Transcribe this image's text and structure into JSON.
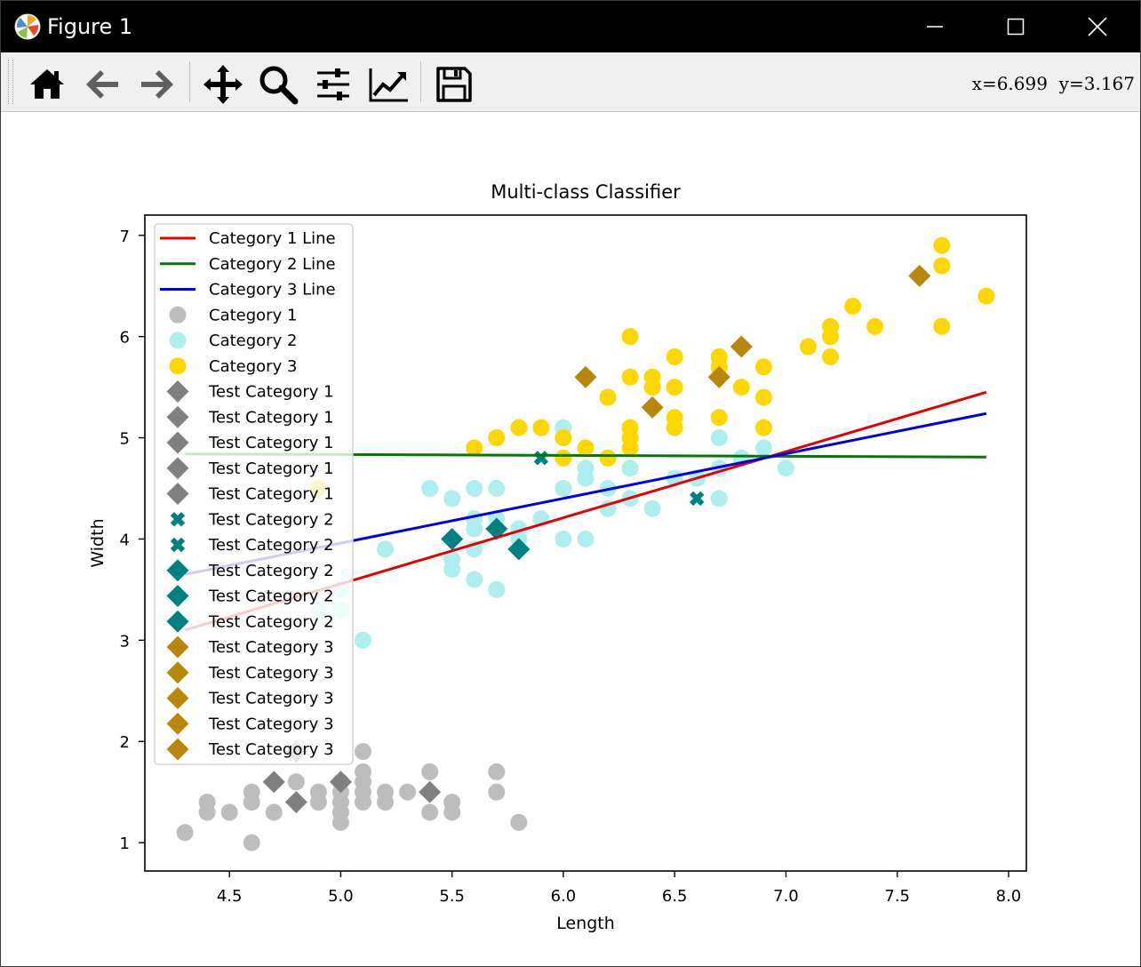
{
  "window": {
    "title": "Figure 1",
    "coords_readout": "x=6.699  y=3.167"
  },
  "toolbar": {
    "buttons": [
      {
        "icon": "home-icon",
        "name": "home-button"
      },
      {
        "icon": "back-arrow-icon",
        "name": "back-button"
      },
      {
        "icon": "forward-arrow-icon",
        "name": "forward-button"
      },
      {
        "icon": "pan-move-icon",
        "name": "pan-button"
      },
      {
        "icon": "zoom-magnifier-icon",
        "name": "zoom-button"
      },
      {
        "icon": "sliders-icon",
        "name": "configure-subplots-button"
      },
      {
        "icon": "line-chart-icon",
        "name": "edit-axes-button"
      },
      {
        "icon": "floppy-disk-icon",
        "name": "save-button"
      }
    ]
  },
  "chart_data": {
    "type": "scatter",
    "title": "Multi-class Classifier",
    "xlabel": "Length",
    "ylabel": "Width",
    "xlim": [
      4.12,
      8.08
    ],
    "ylim": [
      0.72,
      7.2
    ],
    "xticks": [
      4.5,
      5.0,
      5.5,
      6.0,
      6.5,
      7.0,
      7.5,
      8.0
    ],
    "xtick_labels": [
      "4.5",
      "5.0",
      "5.5",
      "6.0",
      "6.5",
      "7.0",
      "7.5",
      "8.0"
    ],
    "yticks": [
      1,
      2,
      3,
      4,
      5,
      6,
      7
    ],
    "ytick_labels": [
      "1",
      "2",
      "3",
      "4",
      "5",
      "6",
      "7"
    ],
    "legend_position": "upper-left",
    "lines": [
      {
        "name": "Category 1 Line",
        "color": "#e60000",
        "x": [
          4.3,
          7.9
        ],
        "y": [
          3.1,
          5.45
        ]
      },
      {
        "name": "Category 2 Line",
        "color": "#007a00",
        "x": [
          4.3,
          7.9
        ],
        "y": [
          4.84,
          4.81
        ]
      },
      {
        "name": "Category 3 Line",
        "color": "#0000e6",
        "x": [
          4.3,
          7.9
        ],
        "y": [
          3.65,
          5.24
        ]
      }
    ],
    "scatter_series": [
      {
        "name": "Category 1",
        "color": "#bdbdbd",
        "marker": "circle",
        "points": [
          [
            4.3,
            1.1
          ],
          [
            4.4,
            1.4
          ],
          [
            4.4,
            1.3
          ],
          [
            4.5,
            1.3
          ],
          [
            4.6,
            1.0
          ],
          [
            4.6,
            1.4
          ],
          [
            4.6,
            1.5
          ],
          [
            4.7,
            1.3
          ],
          [
            4.8,
            1.6
          ],
          [
            4.8,
            1.9
          ],
          [
            4.9,
            1.5
          ],
          [
            4.9,
            1.4
          ],
          [
            5.0,
            1.6
          ],
          [
            5.0,
            1.4
          ],
          [
            5.0,
            1.3
          ],
          [
            5.0,
            1.2
          ],
          [
            5.0,
            1.5
          ],
          [
            5.1,
            1.9
          ],
          [
            5.1,
            1.7
          ],
          [
            5.1,
            1.6
          ],
          [
            5.1,
            1.5
          ],
          [
            5.1,
            1.4
          ],
          [
            5.2,
            1.5
          ],
          [
            5.2,
            1.4
          ],
          [
            5.3,
            1.5
          ],
          [
            5.4,
            1.7
          ],
          [
            5.4,
            1.3
          ],
          [
            5.5,
            1.4
          ],
          [
            5.5,
            1.3
          ],
          [
            5.7,
            1.7
          ],
          [
            5.7,
            1.5
          ],
          [
            5.8,
            1.2
          ]
        ]
      },
      {
        "name": "Category 2",
        "color": "#aeeeee",
        "marker": "circle",
        "points": [
          [
            4.9,
            3.3
          ],
          [
            5.0,
            3.3
          ],
          [
            5.0,
            3.5
          ],
          [
            5.1,
            3.0
          ],
          [
            5.2,
            3.9
          ],
          [
            5.4,
            4.5
          ],
          [
            5.5,
            4.4
          ],
          [
            5.5,
            3.8
          ],
          [
            5.5,
            3.7
          ],
          [
            5.6,
            4.5
          ],
          [
            5.6,
            4.2
          ],
          [
            5.6,
            4.1
          ],
          [
            5.6,
            3.9
          ],
          [
            5.6,
            3.6
          ],
          [
            5.7,
            4.5
          ],
          [
            5.7,
            4.2
          ],
          [
            5.7,
            3.5
          ],
          [
            5.8,
            4.1
          ],
          [
            5.8,
            4.0
          ],
          [
            5.9,
            4.2
          ],
          [
            6.0,
            5.1
          ],
          [
            6.0,
            4.5
          ],
          [
            6.0,
            4.0
          ],
          [
            6.1,
            4.7
          ],
          [
            6.1,
            4.6
          ],
          [
            6.1,
            4.0
          ],
          [
            6.2,
            4.5
          ],
          [
            6.2,
            4.3
          ],
          [
            6.3,
            4.7
          ],
          [
            6.3,
            4.4
          ],
          [
            6.4,
            4.3
          ],
          [
            6.5,
            4.6
          ],
          [
            6.6,
            4.6
          ],
          [
            6.7,
            5.0
          ],
          [
            6.7,
            4.7
          ],
          [
            6.7,
            4.4
          ],
          [
            6.8,
            4.8
          ],
          [
            6.9,
            4.9
          ],
          [
            7.0,
            4.7
          ]
        ]
      },
      {
        "name": "Category 3",
        "color": "#ffd700",
        "marker": "circle",
        "points": [
          [
            4.9,
            4.5
          ],
          [
            5.6,
            4.9
          ],
          [
            5.7,
            5.0
          ],
          [
            5.8,
            5.1
          ],
          [
            5.9,
            5.1
          ],
          [
            6.0,
            5.0
          ],
          [
            6.0,
            4.8
          ],
          [
            6.1,
            4.9
          ],
          [
            6.2,
            5.4
          ],
          [
            6.2,
            4.8
          ],
          [
            6.3,
            6.0
          ],
          [
            6.3,
            5.6
          ],
          [
            6.3,
            5.1
          ],
          [
            6.3,
            5.0
          ],
          [
            6.3,
            4.9
          ],
          [
            6.4,
            5.6
          ],
          [
            6.4,
            5.5
          ],
          [
            6.5,
            5.8
          ],
          [
            6.5,
            5.5
          ],
          [
            6.5,
            5.2
          ],
          [
            6.5,
            5.1
          ],
          [
            6.7,
            5.8
          ],
          [
            6.7,
            5.7
          ],
          [
            6.7,
            5.2
          ],
          [
            6.8,
            5.5
          ],
          [
            6.9,
            5.7
          ],
          [
            6.9,
            5.4
          ],
          [
            6.9,
            5.1
          ],
          [
            7.1,
            5.9
          ],
          [
            7.2,
            6.1
          ],
          [
            7.2,
            6.0
          ],
          [
            7.2,
            5.8
          ],
          [
            7.3,
            6.3
          ],
          [
            7.4,
            6.1
          ],
          [
            7.7,
            6.9
          ],
          [
            7.7,
            6.7
          ],
          [
            7.7,
            6.1
          ],
          [
            7.9,
            6.4
          ]
        ]
      },
      {
        "name": "Test Category 1",
        "color": "#808080",
        "marker": "diamond",
        "points": [
          [
            4.7,
            1.6
          ]
        ]
      },
      {
        "name": "Test Category 1",
        "color": "#808080",
        "marker": "diamond",
        "points": [
          [
            4.8,
            1.4
          ]
        ]
      },
      {
        "name": "Test Category 1",
        "color": "#808080",
        "marker": "diamond",
        "points": [
          [
            5.0,
            1.6
          ]
        ]
      },
      {
        "name": "Test Category 1",
        "color": "#808080",
        "marker": "diamond",
        "points": [
          [
            5.4,
            1.5
          ]
        ]
      },
      {
        "name": "Test Category 1",
        "color": "#808080",
        "marker": "diamond",
        "points": [
          [
            4.8,
            1.9
          ]
        ]
      },
      {
        "name": "Test Category 2",
        "color": "#008080",
        "marker": "x",
        "points": [
          [
            5.9,
            4.8
          ]
        ]
      },
      {
        "name": "Test Category 2",
        "color": "#008080",
        "marker": "x",
        "points": [
          [
            6.6,
            4.4
          ]
        ]
      },
      {
        "name": "Test Category 2",
        "color": "#008080",
        "marker": "diamond",
        "points": [
          [
            5.5,
            4.0
          ]
        ]
      },
      {
        "name": "Test Category 2",
        "color": "#008080",
        "marker": "diamond",
        "points": [
          [
            5.7,
            4.1
          ]
        ]
      },
      {
        "name": "Test Category 2",
        "color": "#008080",
        "marker": "diamond",
        "points": [
          [
            5.8,
            3.9
          ]
        ]
      },
      {
        "name": "Test Category 3",
        "color": "#b8860b",
        "marker": "diamond",
        "points": [
          [
            6.1,
            5.6
          ]
        ]
      },
      {
        "name": "Test Category 3",
        "color": "#b8860b",
        "marker": "diamond",
        "points": [
          [
            6.4,
            5.3
          ]
        ]
      },
      {
        "name": "Test Category 3",
        "color": "#b8860b",
        "marker": "diamond",
        "points": [
          [
            6.7,
            5.6
          ]
        ]
      },
      {
        "name": "Test Category 3",
        "color": "#b8860b",
        "marker": "diamond",
        "points": [
          [
            6.8,
            5.9
          ]
        ]
      },
      {
        "name": "Test Category 3",
        "color": "#b8860b",
        "marker": "diamond",
        "points": [
          [
            7.6,
            6.6
          ]
        ]
      }
    ]
  }
}
